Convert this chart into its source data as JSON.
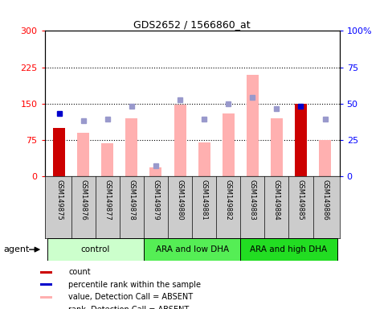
{
  "title": "GDS2652 / 1566860_at",
  "samples": [
    "GSM149875",
    "GSM149876",
    "GSM149877",
    "GSM149878",
    "GSM149879",
    "GSM149880",
    "GSM149881",
    "GSM149882",
    "GSM149883",
    "GSM149884",
    "GSM149885",
    "GSM149886"
  ],
  "groups": [
    {
      "label": "control",
      "color": "#ccffcc",
      "span": [
        0,
        4
      ]
    },
    {
      "label": "ARA and low DHA",
      "color": "#55ee55",
      "span": [
        4,
        8
      ]
    },
    {
      "label": "ARA and high DHA",
      "color": "#22dd22",
      "span": [
        8,
        12
      ]
    }
  ],
  "bar_red_values": [
    100,
    null,
    null,
    null,
    null,
    null,
    null,
    null,
    null,
    null,
    150,
    null
  ],
  "bar_pink_values": [
    null,
    90,
    68,
    120,
    18,
    148,
    70,
    130,
    210,
    120,
    null,
    75
  ],
  "blue_sq_values": [
    130,
    null,
    null,
    null,
    null,
    null,
    null,
    null,
    null,
    null,
    145,
    null
  ],
  "lilac_sq_values": [
    null,
    115,
    118,
    145,
    22,
    157,
    118,
    150,
    162,
    140,
    null,
    118
  ],
  "ylim": [
    0,
    300
  ],
  "yticks_left": [
    0,
    75,
    150,
    225,
    300
  ],
  "ylabels_left": [
    "0",
    "75",
    "150",
    "225",
    "300"
  ],
  "ylabels_right": [
    "0",
    "25",
    "50",
    "75",
    "100%"
  ],
  "bar_color_red": "#cc0000",
  "bar_color_pink": "#ffb0b0",
  "blue_sq_color": "#0000cc",
  "lilac_sq_color": "#9999cc",
  "legend": [
    {
      "color": "#cc0000",
      "label": "count"
    },
    {
      "color": "#0000cc",
      "label": "percentile rank within the sample"
    },
    {
      "color": "#ffb0b0",
      "label": "value, Detection Call = ABSENT"
    },
    {
      "color": "#9999cc",
      "label": "rank, Detection Call = ABSENT"
    }
  ]
}
